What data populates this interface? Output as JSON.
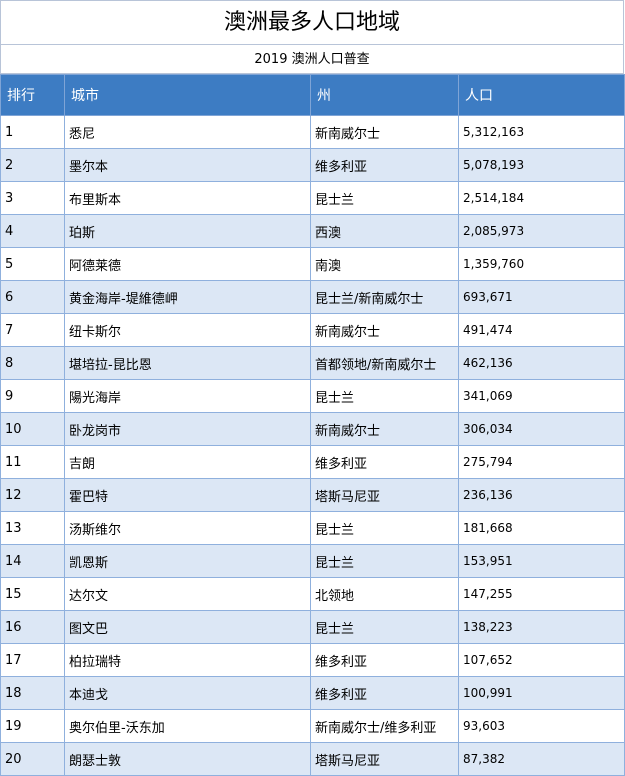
{
  "title": "澳洲最多人口地域",
  "subtitle": "2019 澳洲人口普查",
  "colors": {
    "header_bg": "#3d7cc3",
    "stripe": "#dce7f5",
    "grid": "#8fb0dd"
  },
  "columns": [
    "排行",
    "城市",
    "州",
    "人口"
  ],
  "rows": [
    [
      "1",
      "悉尼",
      "新南威尔士",
      "5,312,163"
    ],
    [
      "2",
      "墨尔本",
      "维多利亚",
      "5,078,193"
    ],
    [
      "3",
      "布里斯本",
      "昆士兰",
      "2,514,184"
    ],
    [
      "4",
      "珀斯",
      "西澳",
      "2,085,973"
    ],
    [
      "5",
      "阿德莱德",
      "南澳",
      "1,359,760"
    ],
    [
      "6",
      "黄金海岸-堤維德岬",
      "昆士兰/新南威尔士",
      "693,671"
    ],
    [
      "7",
      "纽卡斯尔",
      "新南威尔士",
      "491,474"
    ],
    [
      "8",
      "堪培拉-昆比恩",
      "首都领地/新南威尔士",
      "462,136"
    ],
    [
      "9",
      "陽光海岸",
      "昆士兰",
      "341,069"
    ],
    [
      "10",
      "卧龙岗市",
      "新南威尔士",
      "306,034"
    ],
    [
      "11",
      "吉朗",
      "维多利亚",
      "275,794"
    ],
    [
      "12",
      "霍巴特",
      "塔斯马尼亚",
      "236,136"
    ],
    [
      "13",
      "汤斯维尔",
      "昆士兰",
      "181,668"
    ],
    [
      "14",
      "凯恩斯",
      "昆士兰",
      "153,951"
    ],
    [
      "15",
      "达尔文",
      "北领地",
      "147,255"
    ],
    [
      "16",
      "图文巴",
      "昆士兰",
      "138,223"
    ],
    [
      "17",
      "柏拉瑞特",
      "维多利亚",
      "107,652"
    ],
    [
      "18",
      "本迪戈",
      "维多利亚",
      "100,991"
    ],
    [
      "19",
      "奥尔伯里-沃东加",
      "新南威尔士/维多利亚",
      "93,603"
    ],
    [
      "20",
      "朗瑟士敦",
      "塔斯马尼亚",
      "87,382"
    ]
  ]
}
